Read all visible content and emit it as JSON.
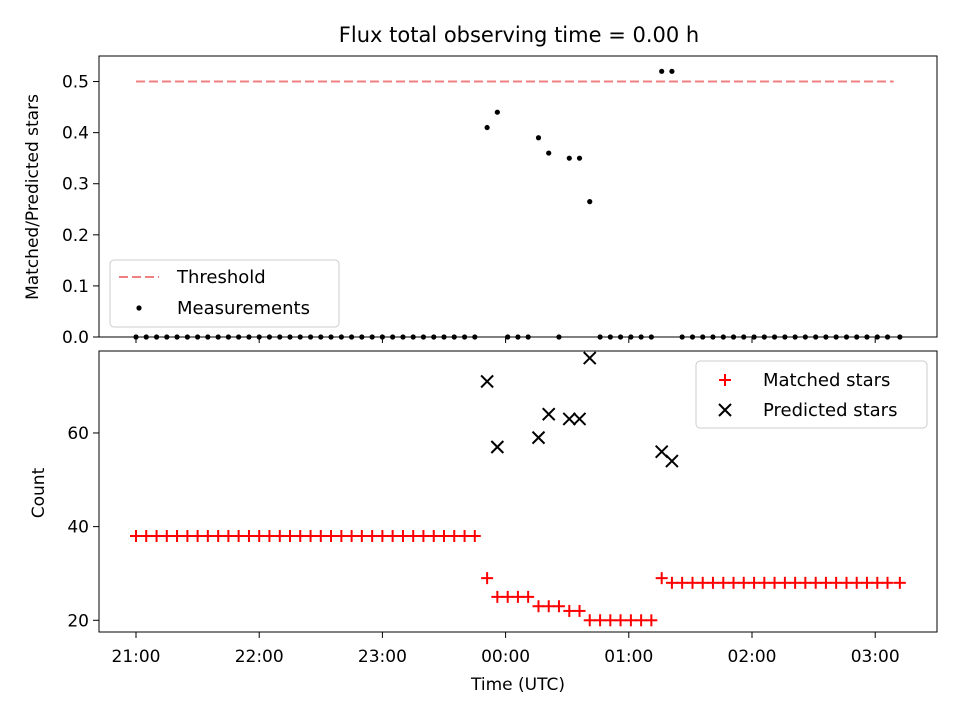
{
  "chart_data": [
    {
      "type": "scatter",
      "panel": "top",
      "title": "Flux total observing time = 0.00 h",
      "xlabel": "",
      "ylabel": "Matched/Predicted stars",
      "ylim": [
        0,
        0.55
      ],
      "yticks": [
        "0.0",
        "0.1",
        "0.2",
        "0.3",
        "0.4",
        "0.5"
      ],
      "ytick_values": [
        0,
        0.1,
        0.2,
        0.3,
        0.4,
        0.5
      ],
      "xlim_hours": [
        20.7,
        27.5
      ],
      "legend_position": "bottom-left",
      "threshold": {
        "name": "Threshold",
        "value": 0.5,
        "x_start": 21.0,
        "x_end": 27.15,
        "color": "#f08080"
      },
      "measurements": {
        "name": "Measurements",
        "color": "#000000",
        "x": [
          21.0,
          21.083,
          21.167,
          21.25,
          21.333,
          21.417,
          21.5,
          21.583,
          21.667,
          21.75,
          21.833,
          21.917,
          22.0,
          22.083,
          22.167,
          22.25,
          22.333,
          22.417,
          22.5,
          22.583,
          22.667,
          22.75,
          22.833,
          22.917,
          23.0,
          23.083,
          23.167,
          23.25,
          23.333,
          23.417,
          23.5,
          23.583,
          23.667,
          23.75,
          23.85,
          23.933,
          24.017,
          24.1,
          24.183,
          24.267,
          24.35,
          24.433,
          24.517,
          24.6,
          24.683,
          24.767,
          24.85,
          24.933,
          25.017,
          25.1,
          25.183,
          25.267,
          25.35,
          25.433,
          25.517,
          25.6,
          25.683,
          25.767,
          25.85,
          25.933,
          26.017,
          26.1,
          26.183,
          26.267,
          26.35,
          26.433,
          26.517,
          26.6,
          26.683,
          26.767,
          26.85,
          26.933,
          27.017,
          27.1,
          27.2
        ],
        "y": [
          0,
          0,
          0,
          0,
          0,
          0,
          0,
          0,
          0,
          0,
          0,
          0,
          0,
          0,
          0,
          0,
          0,
          0,
          0,
          0,
          0,
          0,
          0,
          0,
          0,
          0,
          0,
          0,
          0,
          0,
          0,
          0,
          0,
          0,
          0.41,
          0.44,
          0,
          0,
          0,
          0.39,
          0.36,
          0,
          0.35,
          0.35,
          0.265,
          0,
          0,
          0,
          0,
          0,
          0,
          0.52,
          0.52,
          0,
          0,
          0,
          0,
          0,
          0,
          0,
          0,
          0,
          0,
          0,
          0,
          0,
          0,
          0,
          0,
          0,
          0,
          0,
          0,
          0,
          0
        ]
      }
    },
    {
      "type": "scatter",
      "panel": "bottom",
      "title": "",
      "xlabel": "Time (UTC)",
      "ylabel": "Count",
      "ylim": [
        17.5,
        77.5
      ],
      "yticks": [
        "20",
        "40",
        "60"
      ],
      "ytick_values": [
        20,
        40,
        60
      ],
      "xlim_hours": [
        20.7,
        27.5
      ],
      "xticks": [
        "21:00",
        "22:00",
        "23:00",
        "00:00",
        "01:00",
        "02:00",
        "03:00"
      ],
      "xtick_values": [
        21,
        22,
        23,
        24,
        25,
        26,
        27
      ],
      "legend_position": "top-right",
      "series": [
        {
          "name": "Matched stars",
          "marker": "plus",
          "color": "#ff0000",
          "x": [
            21.0,
            21.083,
            21.167,
            21.25,
            21.333,
            21.417,
            21.5,
            21.583,
            21.667,
            21.75,
            21.833,
            21.917,
            22.0,
            22.083,
            22.167,
            22.25,
            22.333,
            22.417,
            22.5,
            22.583,
            22.667,
            22.75,
            22.833,
            22.917,
            23.0,
            23.083,
            23.167,
            23.25,
            23.333,
            23.417,
            23.5,
            23.583,
            23.667,
            23.75,
            23.85,
            23.933,
            24.017,
            24.1,
            24.183,
            24.267,
            24.35,
            24.433,
            24.517,
            24.6,
            24.683,
            24.767,
            24.85,
            24.933,
            25.017,
            25.1,
            25.183,
            25.267,
            25.35,
            25.433,
            25.517,
            25.6,
            25.683,
            25.767,
            25.85,
            25.933,
            26.017,
            26.1,
            26.183,
            26.267,
            26.35,
            26.433,
            26.517,
            26.6,
            26.683,
            26.767,
            26.85,
            26.933,
            27.017,
            27.1,
            27.2
          ],
          "y": [
            38,
            38,
            38,
            38,
            38,
            38,
            38,
            38,
            38,
            38,
            38,
            38,
            38,
            38,
            38,
            38,
            38,
            38,
            38,
            38,
            38,
            38,
            38,
            38,
            38,
            38,
            38,
            38,
            38,
            38,
            38,
            38,
            38,
            38,
            29,
            25,
            25,
            25,
            25,
            23,
            23,
            23,
            22,
            22,
            20,
            20,
            20,
            20,
            20,
            20,
            20,
            29,
            28,
            28,
            28,
            28,
            28,
            28,
            28,
            28,
            28,
            28,
            28,
            28,
            28,
            28,
            28,
            28,
            28,
            28,
            28,
            28,
            28,
            28,
            28
          ]
        },
        {
          "name": "Predicted stars",
          "marker": "x",
          "color": "#000000",
          "x": [
            23.85,
            23.933,
            24.267,
            24.35,
            24.517,
            24.6,
            24.683,
            25.267,
            25.35
          ],
          "y": [
            71,
            57,
            59,
            64,
            63,
            63,
            76,
            56,
            54
          ]
        }
      ]
    }
  ]
}
